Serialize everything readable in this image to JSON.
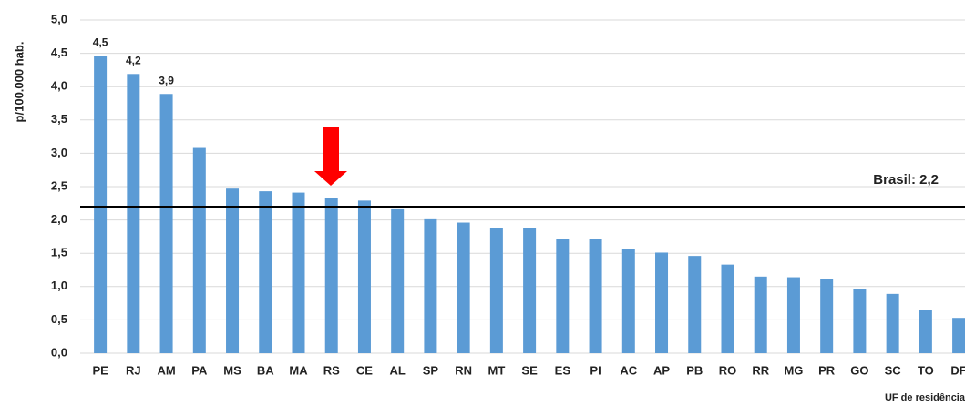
{
  "chart_data": {
    "type": "bar",
    "y_axis_label": "p/100.000 hab.",
    "x_axis_label": "UF de residência",
    "categories": [
      "PE",
      "RJ",
      "AM",
      "PA",
      "MS",
      "BA",
      "MA",
      "RS",
      "CE",
      "AL",
      "SP",
      "RN",
      "MT",
      "SE",
      "ES",
      "PI",
      "AC",
      "AP",
      "PB",
      "RO",
      "RR",
      "MG",
      "PR",
      "GO",
      "SC",
      "TO",
      "DF"
    ],
    "values": [
      4.46,
      4.19,
      3.89,
      3.08,
      2.47,
      2.43,
      2.41,
      2.33,
      2.29,
      2.16,
      2.01,
      1.96,
      1.88,
      1.88,
      1.72,
      1.71,
      1.56,
      1.51,
      1.46,
      1.33,
      1.15,
      1.14,
      1.11,
      0.96,
      0.89,
      0.65,
      0.53
    ],
    "value_labels": [
      "4,5",
      "4,2",
      "3,9",
      null,
      null,
      null,
      null,
      null,
      null,
      null,
      null,
      null,
      null,
      null,
      null,
      null,
      null,
      null,
      null,
      null,
      null,
      null,
      null,
      null,
      null,
      null,
      null
    ],
    "color": "#5b9bd5",
    "ylim": [
      0,
      5
    ],
    "yticks": [
      {
        "value": 0,
        "label": "0,0"
      },
      {
        "value": 0.5,
        "label": "0,5"
      },
      {
        "value": 1,
        "label": "1,0"
      },
      {
        "value": 1.5,
        "label": "1,5"
      },
      {
        "value": 2,
        "label": "2,0"
      },
      {
        "value": 2.5,
        "label": "2,5"
      },
      {
        "value": 3,
        "label": "3,0"
      },
      {
        "value": 3.5,
        "label": "3,5"
      },
      {
        "value": 4,
        "label": "4,0"
      },
      {
        "value": 4.5,
        "label": "4,5"
      },
      {
        "value": 5,
        "label": "5,0"
      }
    ],
    "grid": true,
    "reference_line": {
      "value": 2.2,
      "label": "Brasil: 2,2"
    }
  }
}
